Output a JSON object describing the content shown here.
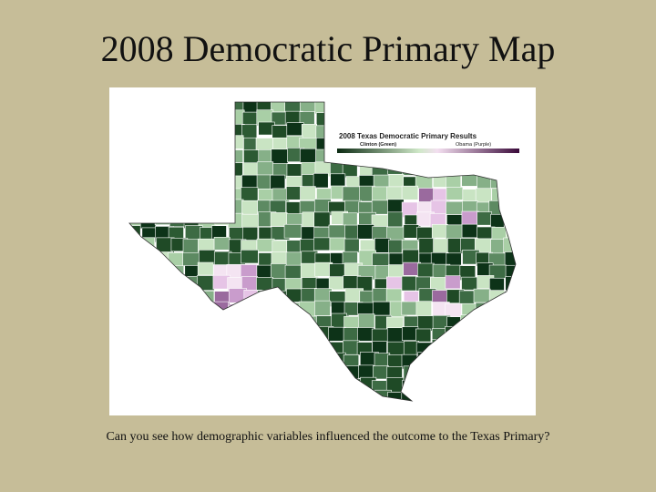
{
  "title": "2008 Democratic Primary Map",
  "map": {
    "legend": {
      "title": "2008 Texas Democratic Primary Results",
      "labels": [
        "Clinton (Green)",
        "Obama (Purple)"
      ]
    }
  },
  "caption": "Can you see how demographic variables influenced the outcome to the Texas Primary?"
}
